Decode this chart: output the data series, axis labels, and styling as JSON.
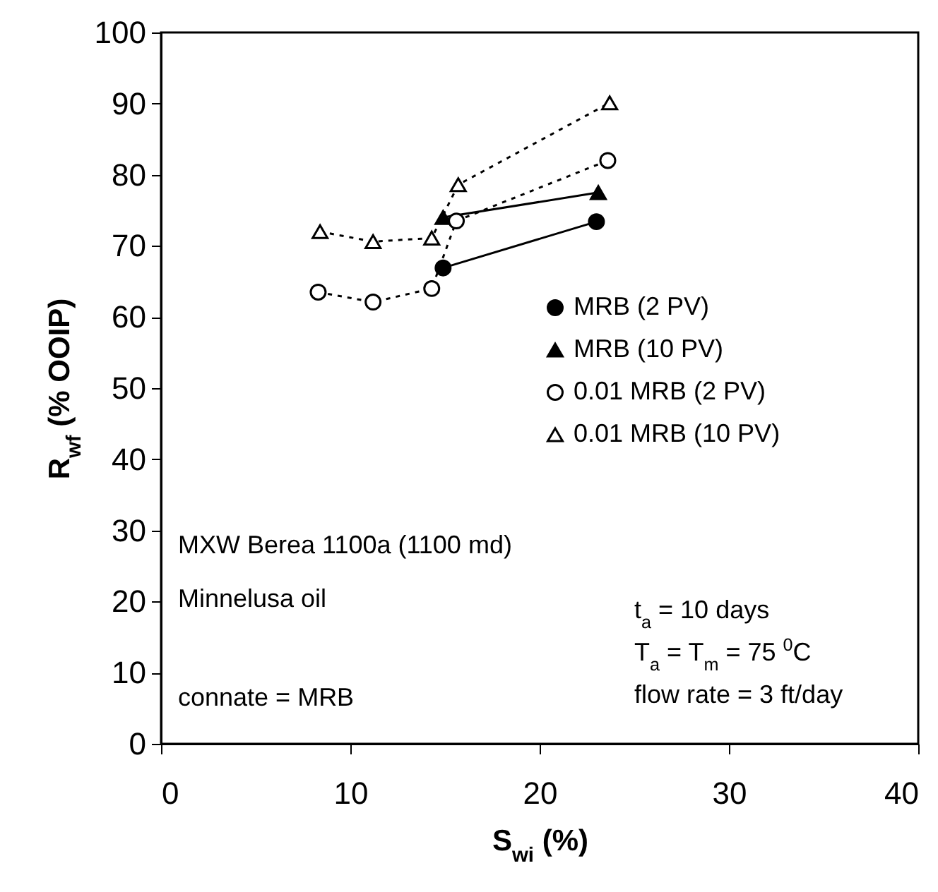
{
  "chart_data": {
    "type": "line",
    "xlabel": "S$_{wi}$ (%)",
    "ylabel": "R$_{wf}$ (% OOIP)",
    "xlim": [
      0,
      40
    ],
    "xticks": [
      0,
      10,
      20,
      30,
      40
    ],
    "ylim": [
      0,
      100
    ],
    "yticks": [
      0,
      10,
      20,
      30,
      40,
      50,
      60,
      70,
      80,
      90,
      100
    ],
    "grid": false,
    "legend": "right",
    "series": [
      {
        "name": "MRB (2 PV)",
        "color": "#000000",
        "marker": "circle",
        "line_style": "solid",
        "x": [
          14.9,
          23.0
        ],
        "values": [
          66.9,
          73.4
        ]
      },
      {
        "name": "MRB (10 PV)",
        "color": "#000000",
        "marker": "triangle",
        "line_style": "solid",
        "x": [
          14.9,
          23.1
        ],
        "values": [
          74.0,
          77.5
        ]
      },
      {
        "name": "0.01 MRB (2 PV)",
        "color": "#000000",
        "marker": "circle",
        "line_style": "dotted",
        "x": [
          8.3,
          11.2,
          14.3,
          15.6,
          23.6
        ],
        "values": [
          63.5,
          62.1,
          64.0,
          73.5,
          82.0
        ]
      },
      {
        "name": "0.01 MRB (10 PV)",
        "color": "#000000",
        "marker": "triangle",
        "line_style": "dotted",
        "x": [
          8.4,
          11.2,
          14.3,
          15.7,
          23.7
        ],
        "values": [
          72.0,
          70.6,
          71.1,
          78.6,
          90.1
        ]
      }
    ],
    "annotations": [
      "MXW Berea 1100a (1100 md)",
      "Minnelusa oil",
      "connate = MRB",
      "t$_{a}$ = 10 days",
      "T$_{a}$ = T$_{m}$ = 75 $^{0}$C",
      "flow  rate = 3 ft/day"
    ]
  }
}
